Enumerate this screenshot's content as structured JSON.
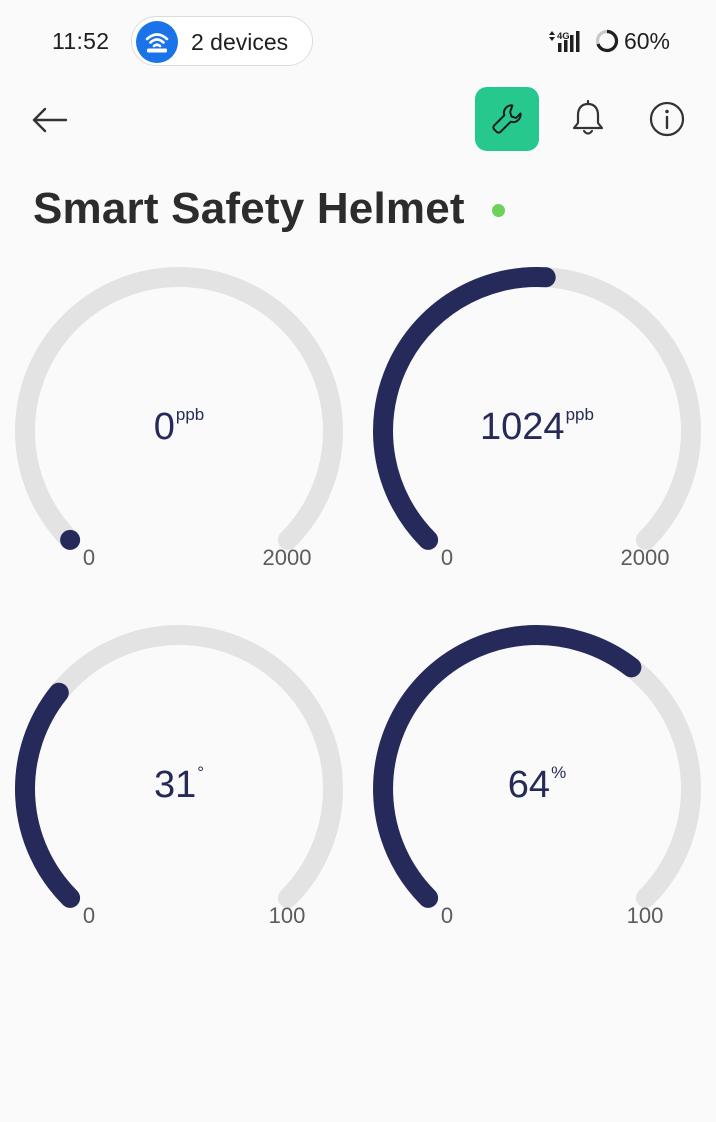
{
  "status_bar": {
    "time": "11:52",
    "devices_label": "2 devices",
    "network": "4G",
    "battery": "60%"
  },
  "toolbar": {
    "back_icon": "arrow-left-icon",
    "settings_icon": "wrench-icon",
    "notifications_icon": "bell-icon",
    "info_icon": "info-icon",
    "accent_color": "#27c88e"
  },
  "device": {
    "title": "Smart Safety Helmet",
    "online_color": "#6fd15b"
  },
  "gauges": [
    {
      "value": "0",
      "unit": "ppb",
      "min": "0",
      "max": "2000",
      "fraction": 0.0
    },
    {
      "value": "1024",
      "unit": "ppb",
      "min": "0",
      "max": "2000",
      "fraction": 0.512
    },
    {
      "value": "31",
      "unit": "°",
      "min": "0",
      "max": "100",
      "fraction": 0.31
    },
    {
      "value": "64",
      "unit": "%",
      "min": "0",
      "max": "100",
      "fraction": 0.64
    }
  ],
  "colors": {
    "gauge_fill": "#252a5b",
    "gauge_track": "#e3e3e3"
  }
}
